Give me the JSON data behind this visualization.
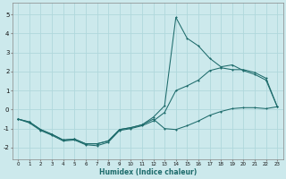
{
  "xlabel": "Humidex (Indice chaleur)",
  "xlim": [
    -0.5,
    23.5
  ],
  "ylim": [
    -2.6,
    5.6
  ],
  "xticks": [
    0,
    1,
    2,
    3,
    4,
    5,
    6,
    7,
    8,
    9,
    10,
    11,
    12,
    13,
    14,
    15,
    16,
    17,
    18,
    19,
    20,
    21,
    22,
    23
  ],
  "yticks": [
    -2,
    -1,
    0,
    1,
    2,
    3,
    4,
    5
  ],
  "bg_color": "#cce9ec",
  "line_color": "#1d6b6b",
  "grid_color": "#b0d8dc",
  "line1_x": [
    0,
    1,
    2,
    3,
    4,
    5,
    6,
    7,
    8,
    9,
    10,
    11,
    12,
    13,
    14,
    15,
    16,
    17,
    18,
    19,
    20,
    21,
    22,
    23
  ],
  "line1_y": [
    -0.5,
    -0.7,
    -1.1,
    -1.35,
    -1.65,
    -1.6,
    -1.85,
    -1.9,
    -1.72,
    -1.1,
    -1.0,
    -0.85,
    -0.6,
    -0.15,
    1.0,
    1.25,
    1.55,
    2.05,
    2.2,
    2.1,
    2.1,
    1.95,
    1.65,
    0.15
  ],
  "line2_x": [
    0,
    1,
    2,
    3,
    4,
    5,
    6,
    7,
    8,
    9,
    10,
    11,
    12,
    13,
    14,
    15,
    16,
    17,
    18,
    19,
    20,
    21,
    22,
    23
  ],
  "line2_y": [
    -0.5,
    -0.65,
    -1.05,
    -1.3,
    -1.6,
    -1.55,
    -1.8,
    -1.8,
    -1.65,
    -1.05,
    -0.95,
    -0.8,
    -0.4,
    0.2,
    4.85,
    3.75,
    3.35,
    2.7,
    2.25,
    2.35,
    2.05,
    1.85,
    1.55,
    0.15
  ],
  "line3_x": [
    0,
    1,
    2,
    3,
    4,
    5,
    6,
    7,
    8,
    9,
    10,
    11,
    12,
    13,
    14,
    15,
    16,
    17,
    18,
    19,
    20,
    21,
    22,
    23
  ],
  "line3_y": [
    -0.5,
    -0.65,
    -1.05,
    -1.3,
    -1.6,
    -1.55,
    -1.8,
    -1.8,
    -1.65,
    -1.05,
    -0.95,
    -0.8,
    -0.5,
    -1.0,
    -1.05,
    -0.85,
    -0.6,
    -0.3,
    -0.1,
    0.05,
    0.1,
    0.1,
    0.05,
    0.15
  ]
}
